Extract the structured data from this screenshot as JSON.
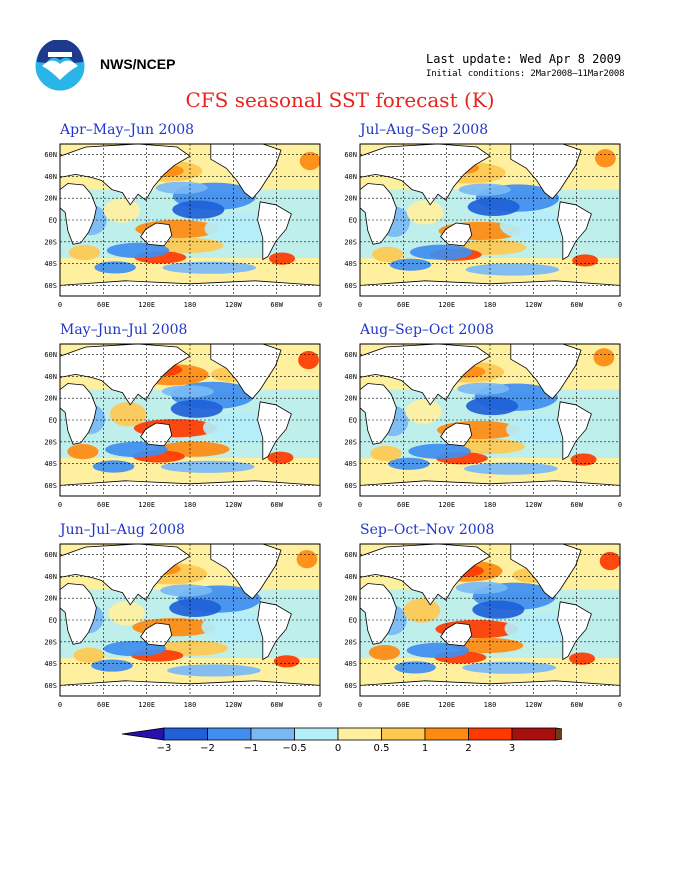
{
  "header": {
    "agency": "NWS/NCEP",
    "last_update": "Last update: Wed Apr 8 2009",
    "initial_conditions": "Initial conditions: 2Mar2008–11Mar2008",
    "title": "CFS seasonal SST forecast (K)"
  },
  "logo": {
    "icon": "noaa-logo-icon",
    "colors": {
      "outer": "#29b5e8",
      "inner": "#1d3a8f",
      "bird": "#ffffff"
    }
  },
  "map_axes": {
    "lat_labels": [
      "60N",
      "40N",
      "20N",
      "EQ",
      "20S",
      "40S",
      "60S"
    ],
    "lon_labels": [
      "0",
      "60E",
      "120E",
      "180",
      "120W",
      "60W",
      "0"
    ]
  },
  "panels": [
    {
      "title": "Apr–May–Jun 2008"
    },
    {
      "title": "Jul–Aug–Sep 2008"
    },
    {
      "title": "May–Jun–Jul 2008"
    },
    {
      "title": "Aug–Sep–Oct 2008"
    },
    {
      "title": "Jun–Jul–Aug 2008"
    },
    {
      "title": "Sep–Oct–Nov 2008"
    }
  ],
  "colorbar": {
    "labels": [
      "−3",
      "−2",
      "−1",
      "−0.5",
      "0",
      "0.5",
      "1",
      "2",
      "3"
    ],
    "colors": [
      "#2a0fb0",
      "#1f5fd8",
      "#3f8ef0",
      "#7ab8f5",
      "#b4eef8",
      "#fff0a0",
      "#ffc850",
      "#ff8a10",
      "#ff3a00",
      "#a81010",
      "#6b3a20"
    ]
  },
  "palette": {
    "land": "#ffffff",
    "coast": "#000000",
    "cool": [
      "#1f5fd8",
      "#3f8ef0",
      "#7ab8f5",
      "#b4eef8"
    ],
    "warm": [
      "#fff0a0",
      "#ffc850",
      "#ff8a10",
      "#ff3a00",
      "#a81010"
    ]
  }
}
